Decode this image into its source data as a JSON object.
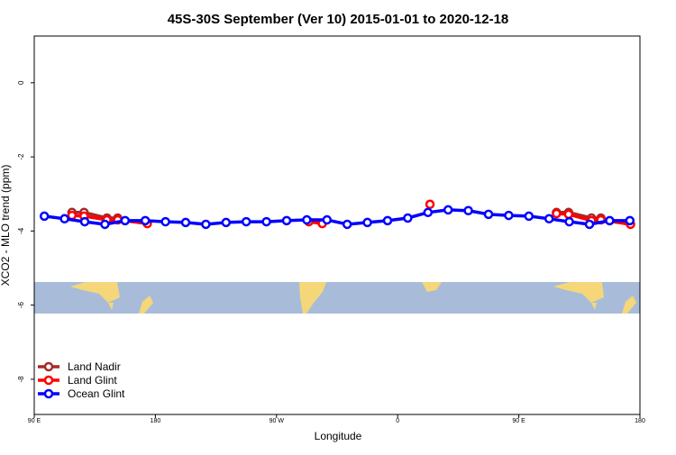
{
  "chart_data": {
    "type": "line",
    "title": "45S-30S September (Ver 10)   2015-01-01 to 2020-12-18",
    "x_label": "Longitude",
    "y_label": "XCO2 - MLO trend (ppm)",
    "xlim": [
      90,
      540
    ],
    "xticks": [
      {
        "value": 90,
        "label": "90 E"
      },
      180,
      {
        "value": 270,
        "label": "90 W"
      },
      {
        "value": 360,
        "label": "0"
      },
      {
        "value": 450,
        "label": "90 E"
      },
      {
        "value": 540,
        "label": "180"
      }
    ],
    "ylim": [
      -8.95,
      1.26
    ],
    "yticks": [
      0,
      -2,
      -4,
      -6,
      -8
    ],
    "legend": "bottomleft",
    "series": [
      {
        "name": "Land Nadir",
        "color": "#a52a2a",
        "x": [
          118,
          127,
          144,
          152,
          null,
          478,
          487,
          504,
          511
        ],
        "values": [
          -3.5,
          -3.5,
          -3.65,
          -3.65,
          null,
          -3.5,
          -3.5,
          -3.65,
          -3.65
        ]
      },
      {
        "name": "Land Glint",
        "color": "#ff0000",
        "x": [
          118,
          127,
          144,
          152,
          174,
          null,
          294,
          304,
          null,
          384,
          null,
          478,
          487,
          504,
          511,
          533
        ],
        "values": [
          -3.58,
          -3.6,
          -3.7,
          -3.7,
          -3.8,
          null,
          -3.75,
          -3.8,
          null,
          -3.28,
          null,
          -3.53,
          -3.55,
          -3.72,
          -3.7,
          -3.82
        ]
      },
      {
        "name": "Ocean Glint",
        "color": "#0000ff",
        "x": [
          97.5,
          112.5,
          127.5,
          142.5,
          157.5,
          172.5,
          187.5,
          202.5,
          217.5,
          232.5,
          247.5,
          262.5,
          277.5,
          292.5,
          307.5,
          322.5,
          337.5,
          352.5,
          367.5,
          382.5,
          397.5,
          412.5,
          427.5,
          442.5,
          457.5,
          472.5,
          487.5,
          502.5,
          517.5,
          532.5
        ],
        "values": [
          -3.6,
          -3.67,
          -3.75,
          -3.82,
          -3.72,
          -3.72,
          -3.75,
          -3.77,
          -3.82,
          -3.77,
          -3.75,
          -3.75,
          -3.72,
          -3.7,
          -3.7,
          -3.82,
          -3.77,
          -3.72,
          -3.65,
          -3.5,
          -3.43,
          -3.45,
          -3.55,
          -3.58,
          -3.6,
          -3.67,
          -3.75,
          -3.82,
          -3.72,
          -3.72
        ]
      }
    ]
  }
}
